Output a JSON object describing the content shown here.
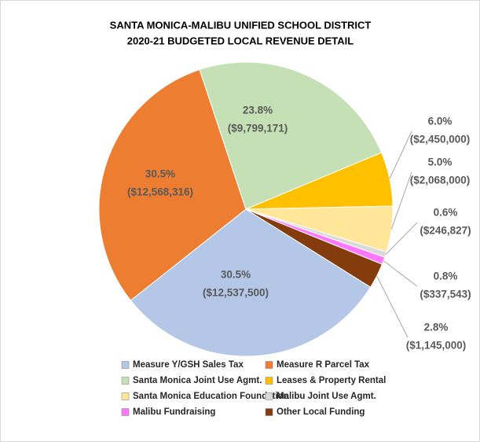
{
  "chart_data": {
    "type": "pie",
    "title": [
      "SANTA MONICA-MALIBU UNIFIED SCHOOL DISTRICT",
      "2020-21 BUDGETED LOCAL REVENUE DETAIL"
    ],
    "categories": [
      "Measure Y/GSH Sales Tax",
      "Measure R Parcel Tax",
      "Santa Monica Joint Use Agmt.",
      "Leases & Property Rental",
      "Santa Monica Education Foundation",
      "Malibu Joint Use Agmt.",
      "Malibu Fundraising",
      "Other Local Funding"
    ],
    "values": [
      12537500,
      12568316,
      9799171,
      2450000,
      2068000,
      246827,
      337543,
      1145000
    ],
    "value_labels": [
      "($12,537,500)",
      "($12,568,316)",
      "($9,799,171)",
      "($2,450,000)",
      "($2,068,000)",
      "($246,827)",
      "($337,543)",
      "($1,145,000)"
    ],
    "percents": [
      30.5,
      30.5,
      23.8,
      6.0,
      5.0,
      0.6,
      0.8,
      2.8
    ],
    "percent_labels": [
      "30.5%",
      "30.5%",
      "23.8%",
      "6.0%",
      "5.0%",
      "0.6%",
      "0.8%",
      "2.8%"
    ],
    "colors": [
      "#b4c7e7",
      "#ed7d31",
      "#c5e0b4",
      "#ffc000",
      "#ffe699",
      "#d9d9d9",
      "#ff77ff",
      "#843c0c"
    ],
    "legend": "bottom"
  }
}
